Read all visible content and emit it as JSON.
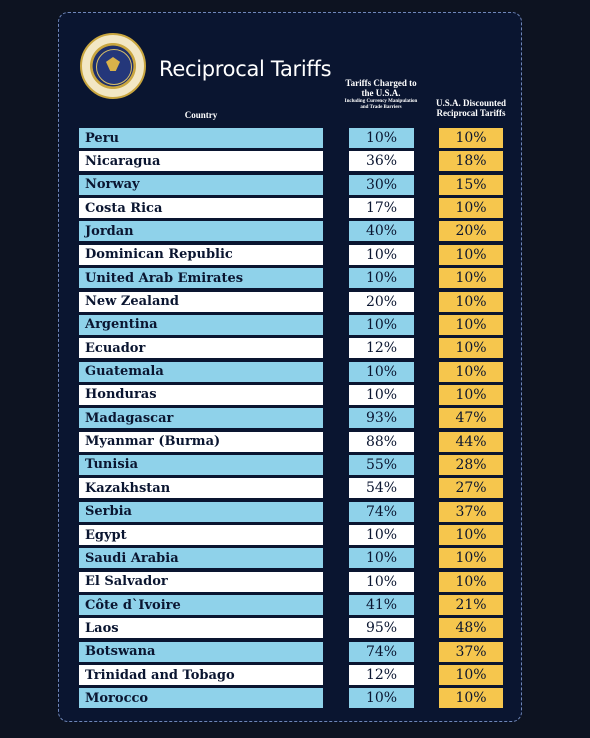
{
  "header": {
    "title": "Reciprocal Tariffs",
    "seal_text": "SEAL OF THE PRESIDENT OF THE UNITED STATES",
    "col_country": "Country",
    "col_charged": "Tariffs Charged to the U.S.A.",
    "col_charged_note": "Including Currency Manipulation and Trade Barriers",
    "col_discounted": "U.S.A. Discounted Reciprocal Tariffs"
  },
  "colors": {
    "board": "#0a1530",
    "row_blue": "#8fd2ea",
    "row_white": "#ffffff",
    "discount": "#f6c64d"
  },
  "chart_data": {
    "type": "table",
    "title": "Reciprocal Tariffs",
    "columns": [
      "Country",
      "Tariffs Charged to the U.S.A.",
      "U.S.A. Discounted Reciprocal Tariffs"
    ],
    "rows": [
      {
        "country": "Peru",
        "charged": "10%",
        "discounted": "10%"
      },
      {
        "country": "Nicaragua",
        "charged": "36%",
        "discounted": "18%"
      },
      {
        "country": "Norway",
        "charged": "30%",
        "discounted": "15%"
      },
      {
        "country": "Costa Rica",
        "charged": "17%",
        "discounted": "10%"
      },
      {
        "country": "Jordan",
        "charged": "40%",
        "discounted": "20%"
      },
      {
        "country": "Dominican Republic",
        "charged": "10%",
        "discounted": "10%"
      },
      {
        "country": "United Arab Emirates",
        "charged": "10%",
        "discounted": "10%"
      },
      {
        "country": "New Zealand",
        "charged": "20%",
        "discounted": "10%"
      },
      {
        "country": "Argentina",
        "charged": "10%",
        "discounted": "10%"
      },
      {
        "country": "Ecuador",
        "charged": "12%",
        "discounted": "10%"
      },
      {
        "country": "Guatemala",
        "charged": "10%",
        "discounted": "10%"
      },
      {
        "country": "Honduras",
        "charged": "10%",
        "discounted": "10%"
      },
      {
        "country": "Madagascar",
        "charged": "93%",
        "discounted": "47%"
      },
      {
        "country": "Myanmar (Burma)",
        "charged": "88%",
        "discounted": "44%"
      },
      {
        "country": "Tunisia",
        "charged": "55%",
        "discounted": "28%"
      },
      {
        "country": "Kazakhstan",
        "charged": "54%",
        "discounted": "27%"
      },
      {
        "country": "Serbia",
        "charged": "74%",
        "discounted": "37%"
      },
      {
        "country": "Egypt",
        "charged": "10%",
        "discounted": "10%"
      },
      {
        "country": "Saudi Arabia",
        "charged": "10%",
        "discounted": "10%"
      },
      {
        "country": "El Salvador",
        "charged": "10%",
        "discounted": "10%"
      },
      {
        "country": "Côte d`Ivoire",
        "charged": "41%",
        "discounted": "21%"
      },
      {
        "country": "Laos",
        "charged": "95%",
        "discounted": "48%"
      },
      {
        "country": "Botswana",
        "charged": "74%",
        "discounted": "37%"
      },
      {
        "country": "Trinidad and Tobago",
        "charged": "12%",
        "discounted": "10%"
      },
      {
        "country": "Morocco",
        "charged": "10%",
        "discounted": "10%"
      }
    ]
  }
}
